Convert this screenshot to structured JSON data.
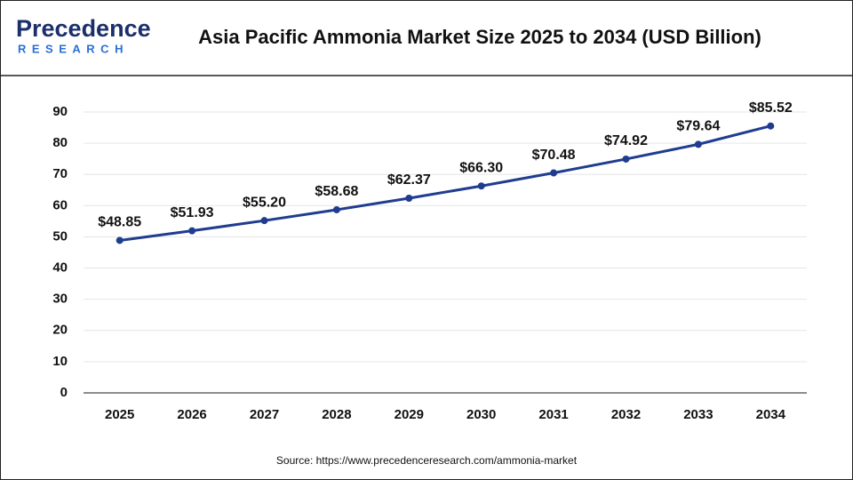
{
  "brand": {
    "name": "Precedence",
    "tagline": "RESEARCH"
  },
  "chart_data": {
    "type": "line",
    "title": "Asia Pacific Ammonia Market Size 2025 to 2034 (USD Billion)",
    "categories": [
      "2025",
      "2026",
      "2027",
      "2028",
      "2029",
      "2030",
      "2031",
      "2032",
      "2033",
      "2034"
    ],
    "series": [
      {
        "name": "Asia Pacific Ammonia Market Size",
        "color": "#1f3c8f",
        "values": [
          48.85,
          51.93,
          55.2,
          58.68,
          62.37,
          66.3,
          70.48,
          74.92,
          79.64,
          85.52
        ],
        "value_labels": [
          "$48.85",
          "$51.93",
          "$55.20",
          "$58.68",
          "$62.37",
          "$66.30",
          "$70.48",
          "$74.92",
          "$79.64",
          "$85.52"
        ]
      }
    ],
    "ylim": [
      0,
      90
    ],
    "yticks": [
      0,
      10,
      20,
      30,
      40,
      50,
      60,
      70,
      80,
      90
    ],
    "grid": true,
    "source": "Source: https://www.precedenceresearch.com/ammonia-market"
  }
}
